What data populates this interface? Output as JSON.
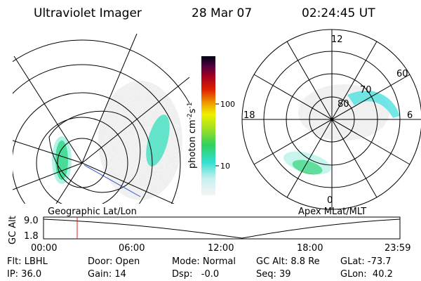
{
  "header": {
    "instrument": "Ultraviolet Imager",
    "date": "28 Mar 07",
    "time": "02:24:45 UT"
  },
  "geographic_panel": {
    "label": "Geographic Lat/Lon"
  },
  "colorbar": {
    "unit": {
      "base": "photon cm",
      "exp1": "-2",
      "mid": "s",
      "exp2": "-1"
    },
    "ticks": [
      "100",
      "10"
    ]
  },
  "magnetic_panel": {
    "label": "Apex MLat/MLT",
    "mlt_labels": [
      "12",
      "18",
      "6",
      "0"
    ],
    "lat_labels": [
      "60",
      "70",
      "80"
    ]
  },
  "timeline": {
    "ylabel": "GC Alt",
    "yticks": [
      "9.0",
      "1.8"
    ],
    "xticks": [
      "00:00",
      "06:00",
      "12:00",
      "18:00",
      "23:59"
    ]
  },
  "status": {
    "rows": [
      [
        "Flt: LBHL",
        "Door: Open",
        "Mode: Normal",
        "GC Alt: 8.8 Re",
        "GLat: -73.7"
      ],
      [
        "IP: 36.0",
        "Gain: 14",
        "Dsp:   -0.0",
        "Seq: 39",
        "GLon:  40.2"
      ]
    ]
  }
}
